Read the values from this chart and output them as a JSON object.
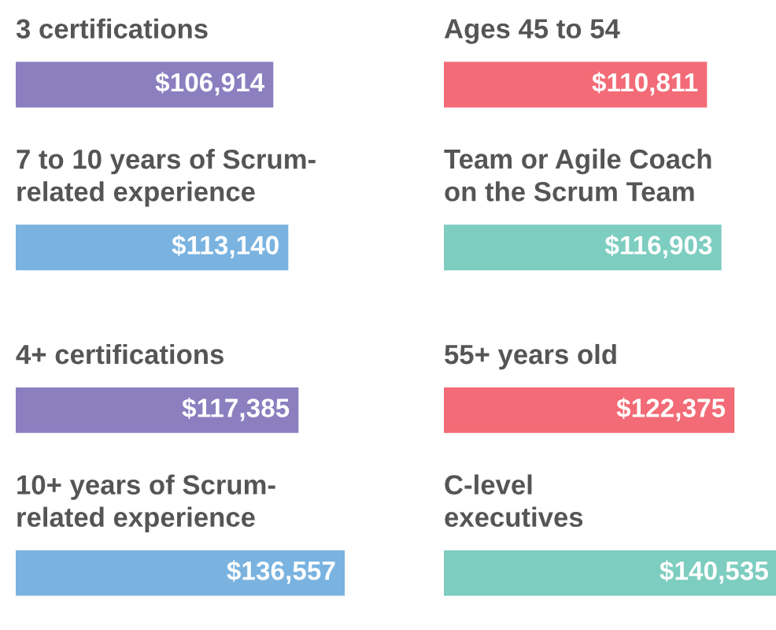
{
  "chart_data": [
    {
      "type": "bar",
      "orientation": "horizontal",
      "categories": [
        "3 certifications",
        "7 to 10 years of Scrum-\nrelated experience",
        "4+ certifications",
        "10+ years of Scrum-\nrelated experience"
      ],
      "values": [
        106914,
        113140,
        117385,
        136557
      ],
      "value_labels": [
        "$106,914",
        "$113,140",
        "$117,385",
        "$136,557"
      ],
      "colors": [
        "#8b7fc0",
        "#7ab3e0",
        "#8b7fc0",
        "#7ab3e0"
      ],
      "tick_labels": false
    },
    {
      "type": "bar",
      "orientation": "horizontal",
      "categories": [
        "Ages 45 to 54",
        "Team or Agile Coach\non the Scrum Team",
        "55+ years old",
        "C-level\nexecutives"
      ],
      "values": [
        110811,
        116903,
        122375,
        140535
      ],
      "value_labels": [
        "$110,811",
        "$116,903",
        "$122,375",
        "$140,535"
      ],
      "colors": [
        "#f26b76",
        "#7dcdc0",
        "#f26b76",
        "#7dcdc0"
      ],
      "tick_labels": false
    }
  ]
}
